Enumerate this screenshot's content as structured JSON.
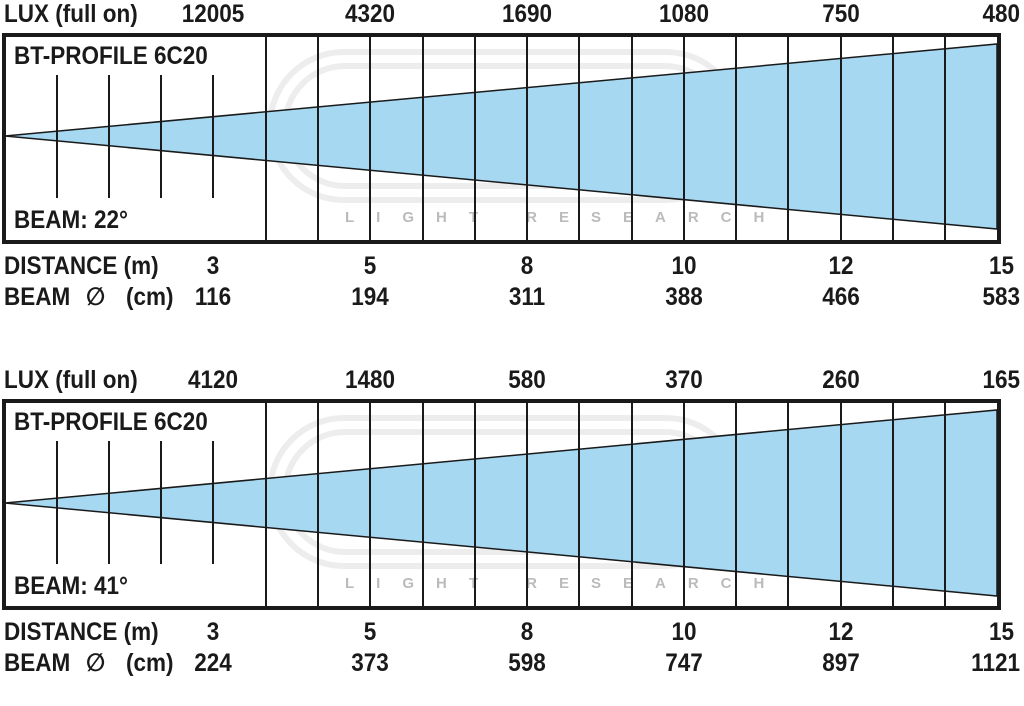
{
  "panels": [
    {
      "lux_label": "LUX (full on)",
      "lux_values": [
        "12005",
        "4320",
        "1690",
        "1080",
        "750",
        "480"
      ],
      "model": "BT-PROFILE 6C20",
      "beam_label": "BEAM: 22°",
      "distance_label": "DISTANCE (m)",
      "distances": [
        "3",
        "5",
        "8",
        "10",
        "12",
        "15"
      ],
      "diameter_label": "BEAM",
      "diameter_symbol": "∅",
      "diameter_unit": "(cm)",
      "diameters": [
        "116",
        "194",
        "311",
        "388",
        "466",
        "583"
      ]
    },
    {
      "lux_label": "LUX (full on)",
      "lux_values": [
        "4120",
        "1480",
        "580",
        "370",
        "260",
        "165"
      ],
      "model": "BT-PROFILE 6C20",
      "beam_label": "BEAM: 41°",
      "distance_label": "DISTANCE (m)",
      "distances": [
        "3",
        "5",
        "8",
        "10",
        "12",
        "15"
      ],
      "diameter_label": "BEAM",
      "diameter_symbol": "∅",
      "diameter_unit": "(cm)",
      "diameters": [
        "224",
        "373",
        "598",
        "747",
        "897",
        "1121"
      ]
    }
  ],
  "watermark": "LIGHT RESEARCH",
  "colors": {
    "beam_fill": "#a6d8f2",
    "frame": "#1a1a1a",
    "background": "#ffffff"
  }
}
